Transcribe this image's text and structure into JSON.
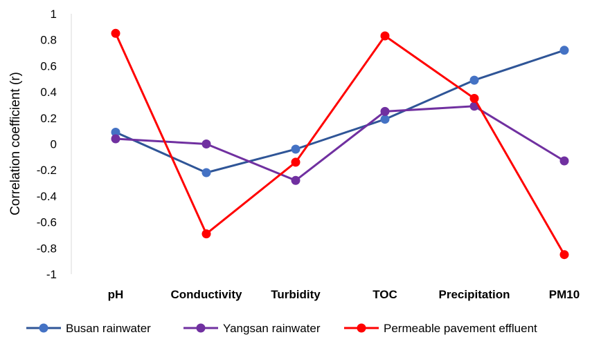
{
  "chart_data": {
    "type": "line",
    "title": "",
    "xlabel": "",
    "ylabel": "Correlation coefficient (r)",
    "ylim": [
      -1,
      1
    ],
    "yticks": [
      "1",
      "0.8",
      "0.6",
      "0.4",
      "0.2",
      "0",
      "-0.2",
      "-0.4",
      "-0.6",
      "-0.8",
      "-1"
    ],
    "grid": false,
    "legend_position": "bottom",
    "categories": [
      "pH",
      "Conductivity",
      "Turbidity",
      "TOC",
      "Precipitation",
      "PM10"
    ],
    "series": [
      {
        "name": "Busan rainwater",
        "color": "#4472C4",
        "line_color": "#2F5597",
        "values": [
          0.09,
          -0.22,
          -0.04,
          0.19,
          0.49,
          0.72
        ]
      },
      {
        "name": "Yangsan rainwater",
        "color": "#7030A0",
        "line_color": "#7030A0",
        "values": [
          0.04,
          0.0,
          -0.28,
          0.25,
          0.29,
          -0.13
        ]
      },
      {
        "name": "Permeable pavement effluent",
        "color": "#FF0000",
        "line_color": "#FF0000",
        "values": [
          0.85,
          -0.69,
          -0.14,
          0.83,
          0.35,
          -0.85
        ]
      }
    ]
  }
}
